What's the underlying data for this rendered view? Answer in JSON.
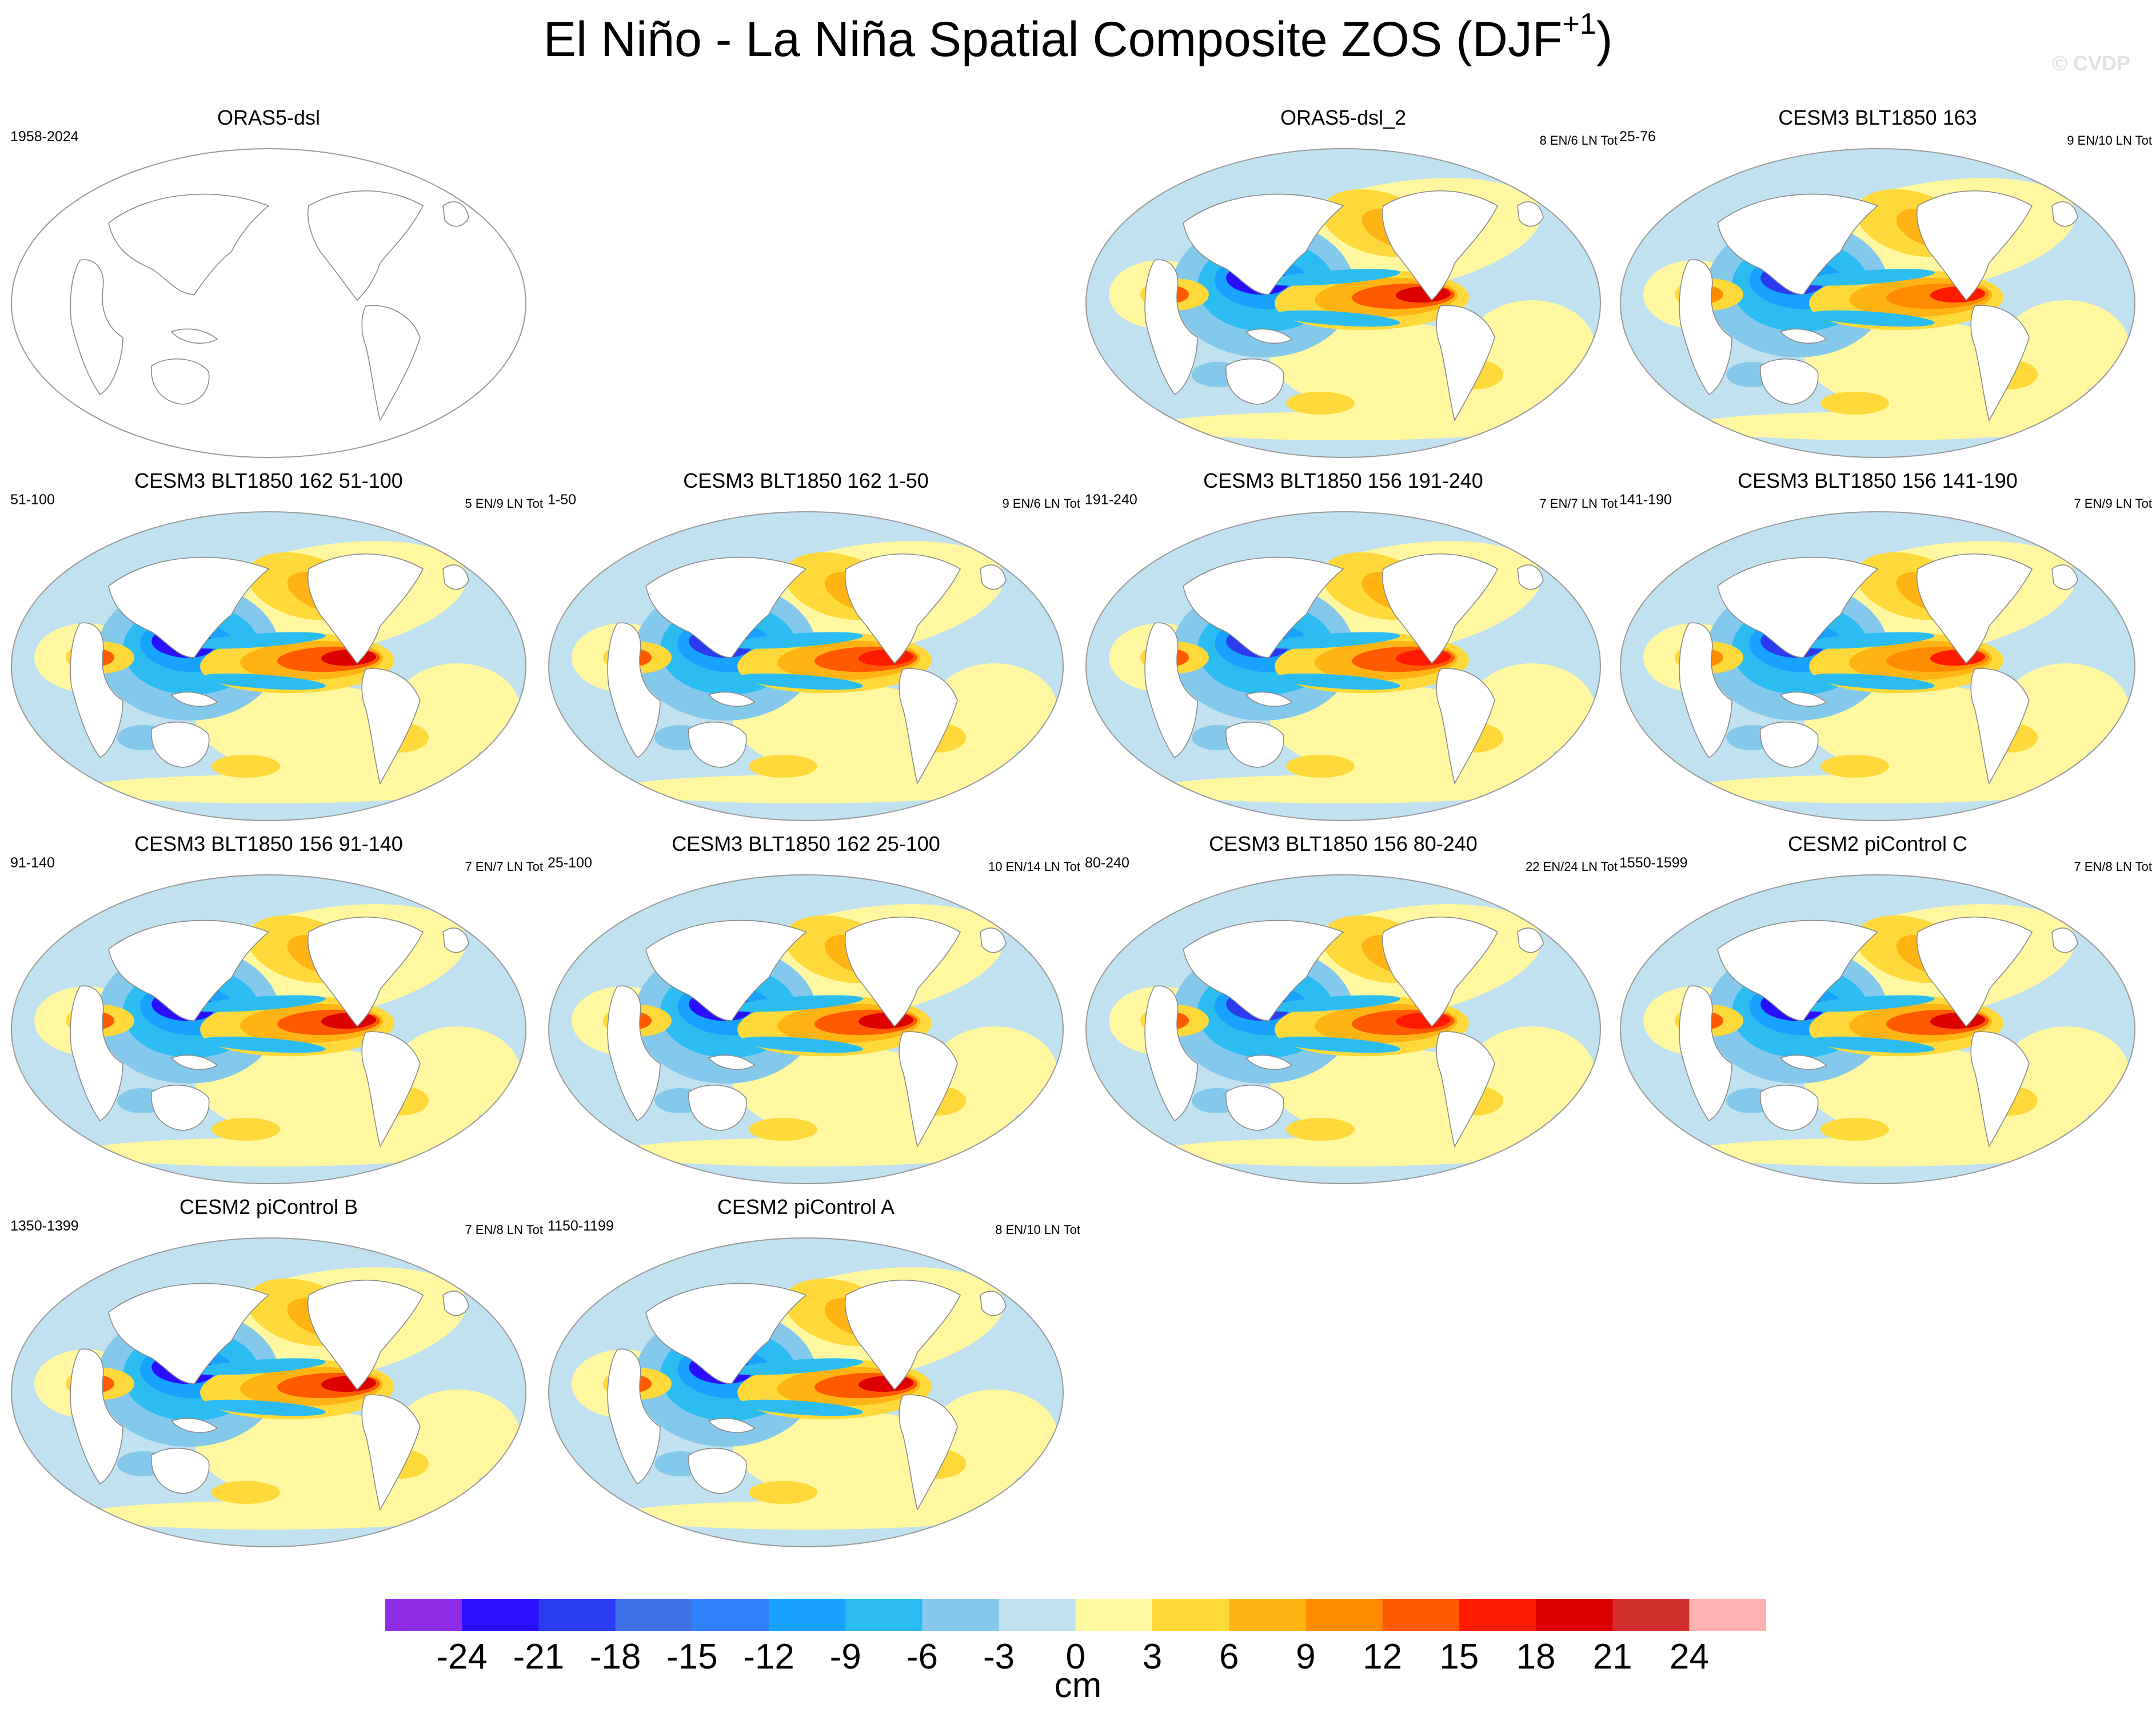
{
  "title": "El Niño - La Niña Spatial Composite ZOS (DJF",
  "title_superscript": "+1",
  "title_suffix": ")",
  "copyright": "© CVDP",
  "panels": [
    {
      "title": "ORAS5-dsl",
      "years": "1958-2024",
      "counts": "",
      "blank": true,
      "strength": 0.0
    },
    {
      "title": "ORAS5-dsl_2",
      "years": "",
      "counts": "8 EN/6 LN Tot",
      "strength": 1.0
    },
    {
      "title": "CESM3 BLT1850 163",
      "years": "25-76",
      "counts": "9 EN/10 LN Tot",
      "strength": 0.6
    },
    {
      "title": "CESM3 BLT1850 162 51-100",
      "years": "51-100",
      "counts": "5 EN/9 LN Tot",
      "strength": 0.9
    },
    {
      "title": "CESM3 BLT1850 162 1-50",
      "years": "1-50",
      "counts": "9 EN/6 LN Tot",
      "strength": 0.75
    },
    {
      "title": "CESM3 BLT1850 156 191-240",
      "years": "191-240",
      "counts": "7 EN/7 LN Tot",
      "strength": 0.75
    },
    {
      "title": "CESM3 BLT1850 156 141-190",
      "years": "141-190",
      "counts": "7 EN/9 LN Tot",
      "strength": 0.65
    },
    {
      "title": "CESM3 BLT1850 156 91-140",
      "years": "91-140",
      "counts": "7 EN/7 LN Tot",
      "strength": 0.95
    },
    {
      "title": "CESM3 BLT1850 162 25-100",
      "years": "25-100",
      "counts": "10 EN/14 LN Tot",
      "strength": 0.85
    },
    {
      "title": "CESM3 BLT1850 156 80-240",
      "years": "80-240",
      "counts": "22 EN/24 LN Tot",
      "strength": 0.75
    },
    {
      "title": "CESM2 piControl C",
      "years": "1550-1599",
      "counts": "7 EN/8 LN Tot",
      "strength": 0.95
    },
    {
      "title": "CESM2 piControl B",
      "years": "1350-1399",
      "counts": "7 EN/8 LN Tot",
      "strength": 1.0
    },
    {
      "title": "CESM2 piControl A",
      "years": "1150-1199",
      "counts": "8 EN/10 LN Tot",
      "strength": 0.95
    }
  ],
  "chart_data": {
    "type": "heatmap",
    "title": "El Niño - La Niña Spatial Composite ZOS (DJF+1)",
    "colorbar": {
      "unit": "cm",
      "levels": [
        -24,
        -21,
        -18,
        -15,
        -12,
        -9,
        -6,
        -3,
        0,
        3,
        6,
        9,
        12,
        15,
        18,
        21,
        24
      ],
      "tick_labels": [
        "-24",
        "-21",
        "-18",
        "-15",
        "-12",
        "-9",
        "-6",
        "-3",
        "0",
        "3",
        "6",
        "9",
        "12",
        "15",
        "18",
        "21",
        "24"
      ],
      "colors": [
        "#8f2de6",
        "#2a0fff",
        "#2a3bf0",
        "#4070e6",
        "#2f80ff",
        "#17a2ff",
        "#2bbcf2",
        "#84c8ec",
        "#bfe1f0",
        "#fff8a0",
        "#ffd93a",
        "#ffb414",
        "#ff8c00",
        "#ff5a00",
        "#ff1a00",
        "#dc0000",
        "#d42f2f",
        "#ffb2b2"
      ]
    }
  }
}
